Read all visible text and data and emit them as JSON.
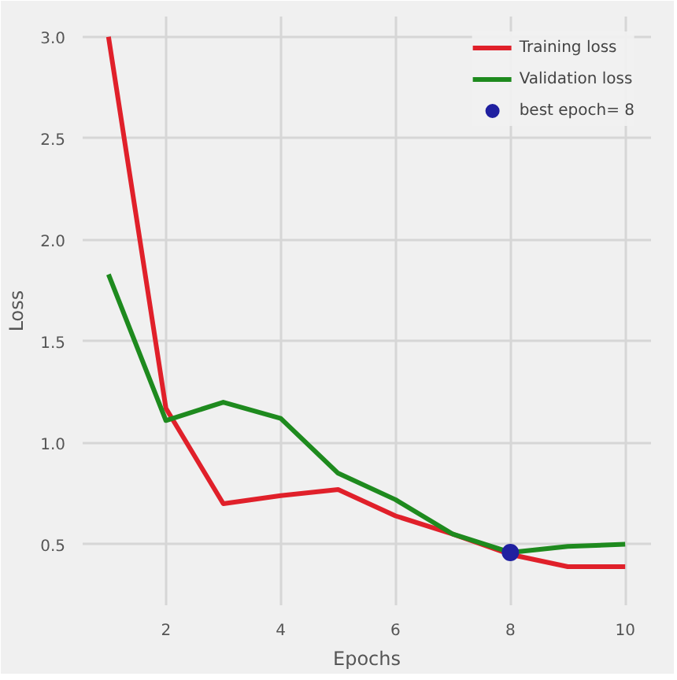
{
  "chart_data": {
    "type": "line",
    "xlabel": "Epochs",
    "ylabel": "Loss",
    "x": [
      1,
      2,
      3,
      4,
      5,
      6,
      7,
      8,
      9,
      10
    ],
    "series": [
      {
        "name": "Training loss",
        "color": "#e0202a",
        "values": [
          3.0,
          1.17,
          0.7,
          0.74,
          0.77,
          0.64,
          0.55,
          0.45,
          0.39,
          0.39
        ]
      },
      {
        "name": "Validation loss",
        "color": "#1e8a1e",
        "values": [
          1.83,
          1.11,
          1.2,
          1.12,
          0.85,
          0.72,
          0.55,
          0.46,
          0.49,
          0.5
        ]
      },
      {
        "name": "best epoch= 8",
        "type": "scatter",
        "color": "#2020a0",
        "x": [
          8
        ],
        "values": [
          0.46
        ]
      }
    ],
    "xlim": [
      0.55,
      10.45
    ],
    "ylim": [
      0.2,
      3.1
    ],
    "xticks": [
      2,
      4,
      6,
      8,
      10
    ],
    "yticks": [
      0.5,
      {
        "value": 1,
        "label": "1.0"
      },
      1.5,
      {
        "value": 2,
        "label": "2.0"
      },
      2.5,
      {
        "value": 3,
        "label": "3.0"
      }
    ],
    "grid": true,
    "legend": "top right"
  }
}
